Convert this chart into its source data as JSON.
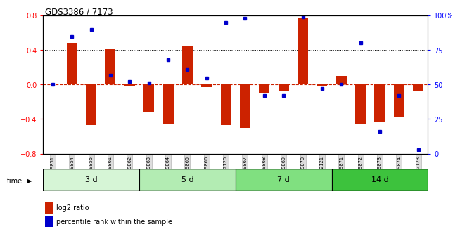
{
  "title": "GDS3386 / 7173",
  "samples": [
    "GSM149851",
    "GSM149854",
    "GSM149855",
    "GSM149861",
    "GSM149862",
    "GSM149863",
    "GSM149864",
    "GSM149865",
    "GSM149866",
    "GSM152120",
    "GSM149867",
    "GSM149868",
    "GSM149869",
    "GSM149870",
    "GSM152121",
    "GSM149871",
    "GSM149872",
    "GSM149873",
    "GSM149874",
    "GSM152123"
  ],
  "log2_ratio": [
    0.0,
    0.48,
    -0.47,
    0.41,
    -0.02,
    -0.32,
    -0.46,
    0.44,
    -0.03,
    -0.47,
    -0.5,
    -0.1,
    -0.07,
    0.78,
    -0.02,
    0.1,
    -0.46,
    -0.43,
    -0.38,
    -0.07
  ],
  "percentile": [
    50,
    85,
    90,
    57,
    52,
    51,
    68,
    61,
    55,
    95,
    98,
    42,
    42,
    99,
    47,
    50,
    80,
    16,
    42,
    3
  ],
  "groups": [
    {
      "label": "3 d",
      "start": 0,
      "end": 5,
      "color": "#d6f5d6"
    },
    {
      "label": "5 d",
      "start": 5,
      "end": 10,
      "color": "#b3ecb3"
    },
    {
      "label": "7 d",
      "start": 10,
      "end": 15,
      "color": "#80e080"
    },
    {
      "label": "14 d",
      "start": 15,
      "end": 20,
      "color": "#3dc23d"
    }
  ],
  "bar_color": "#cc2200",
  "dot_color": "#0000cc",
  "ylim_left": [
    -0.8,
    0.8
  ],
  "ylim_right": [
    0,
    100
  ],
  "yticks_left": [
    -0.8,
    -0.4,
    0.0,
    0.4,
    0.8
  ],
  "yticks_right": [
    0,
    25,
    50,
    75,
    100
  ],
  "ytick_labels_right": [
    "0",
    "25",
    "50",
    "75",
    "100%"
  ],
  "dotted_lines": [
    -0.4,
    0.4
  ],
  "background_color": "#ffffff"
}
